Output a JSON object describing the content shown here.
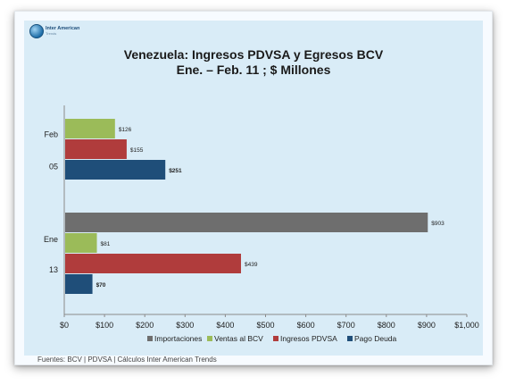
{
  "logo": {
    "name": "Inter American",
    "sub": "Trends"
  },
  "chart_data": {
    "type": "bar",
    "orientation": "horizontal",
    "title": "Venezuela: Ingresos PDVSA y Egresos BCV",
    "subtitle": "Ene. – Feb. 11 ; $ Millones",
    "groups": [
      {
        "label_top": "Feb",
        "label_bottom": "05",
        "bars": [
          {
            "series": "Ventas al BCV",
            "value": 126,
            "label": "$126",
            "bold": false
          },
          {
            "series": "Ingresos PDVSA",
            "value": 155,
            "label": "$155",
            "bold": false
          },
          {
            "series": "Pago Deuda",
            "value": 251,
            "label": "$251",
            "bold": true
          }
        ]
      },
      {
        "label_top": "Ene",
        "label_bottom": "13",
        "bars": [
          {
            "series": "Importaciones",
            "value": 903,
            "label": "$903",
            "bold": false
          },
          {
            "series": "Ventas al BCV",
            "value": 81,
            "label": "$81",
            "bold": false
          },
          {
            "series": "Ingresos PDVSA",
            "value": 439,
            "label": "$439",
            "bold": false
          },
          {
            "series": "Pago Deuda",
            "value": 70,
            "label": "$70",
            "bold": true
          }
        ]
      }
    ],
    "series": [
      {
        "name": "Importaciones",
        "color": "#6e6e6e"
      },
      {
        "name": "Ventas al BCV",
        "color": "#9bbb59"
      },
      {
        "name": "Ingresos PDVSA",
        "color": "#b03c3c"
      },
      {
        "name": "Pago Deuda",
        "color": "#1f4e79"
      }
    ],
    "xlim": [
      0,
      1000
    ],
    "xticks": [
      "$0",
      "$100",
      "$200",
      "$300",
      "$400",
      "$500",
      "$600",
      "$700",
      "$800",
      "$900",
      "$1,000"
    ],
    "legend_position": "bottom",
    "grid": false
  },
  "footer": "Fuentes: BCV | PDVSA | Cálculos Inter American Trends"
}
